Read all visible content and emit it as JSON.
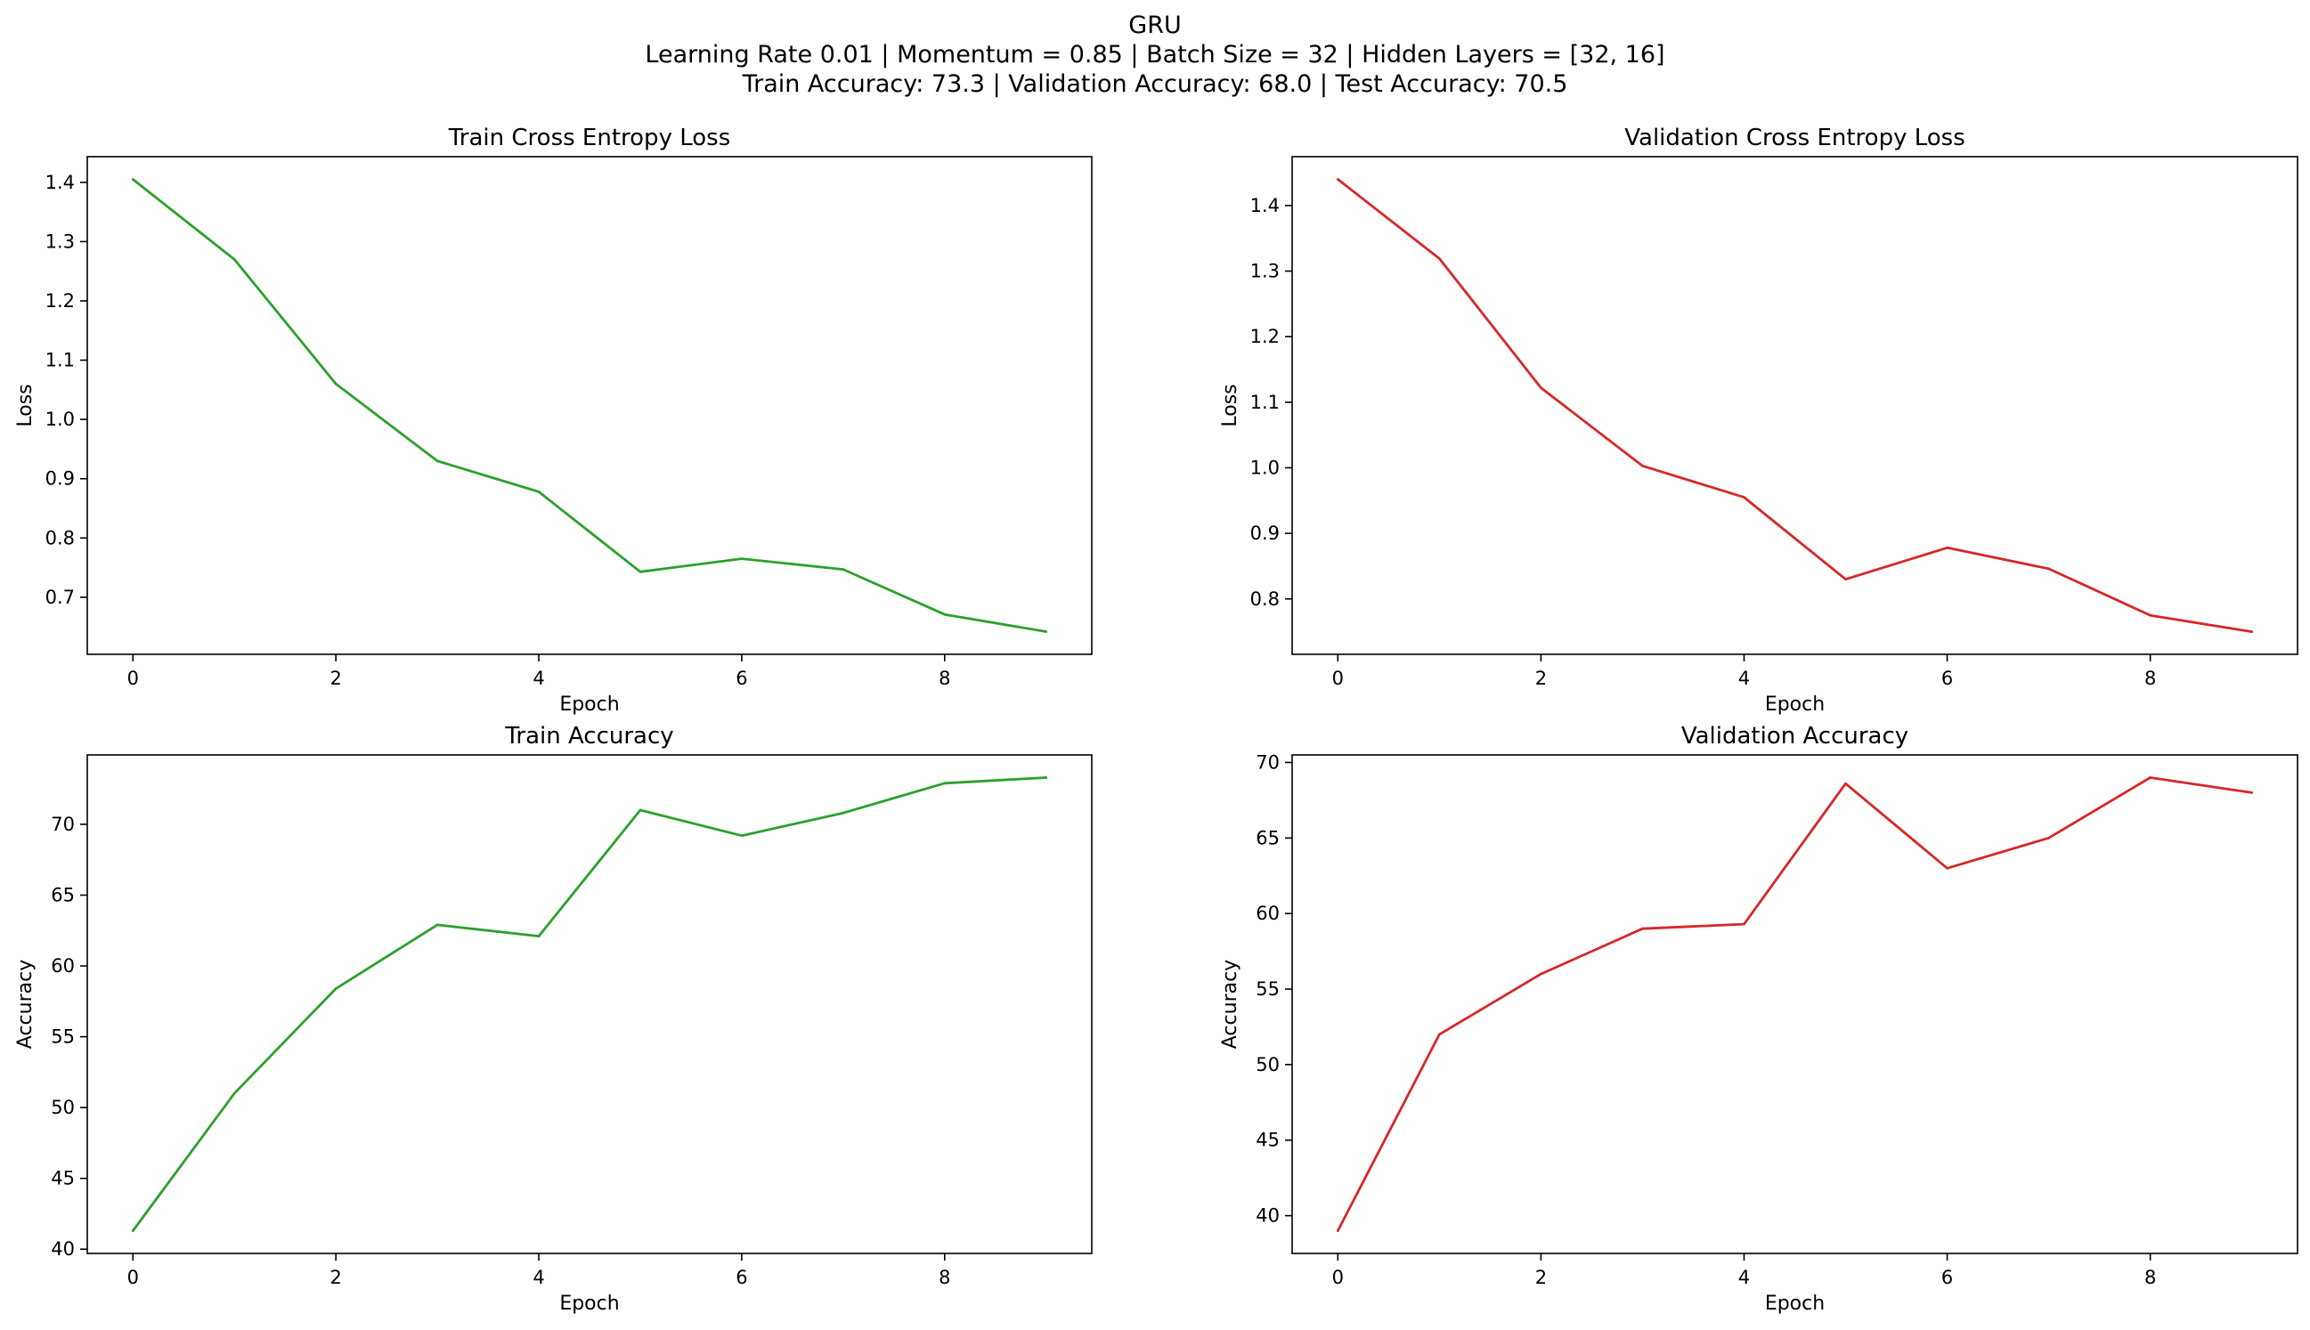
{
  "figure": {
    "title_lines": [
      "GRU",
      "Learning Rate 0.01 | Momentum = 0.85 | Batch Size  = 32 | Hidden Layers = [32, 16]",
      "Train Accuracy: 73.3 | Validation Accuracy: 68.0 | Test Accuracy: 70.5"
    ]
  },
  "chart_data": [
    {
      "type": "line",
      "title": "Train Cross Entropy Loss",
      "xlabel": "Epoch",
      "ylabel": "Loss",
      "color": "#2ca02c",
      "x": [
        0,
        1,
        2,
        3,
        4,
        5,
        6,
        7,
        8,
        9
      ],
      "values": [
        1.405,
        1.27,
        1.06,
        0.93,
        0.878,
        0.743,
        0.765,
        0.747,
        0.671,
        0.642
      ],
      "xlim": [
        -0.45,
        9.45
      ],
      "ylim": [
        0.6037,
        1.4433
      ],
      "xticks": [
        0,
        2,
        4,
        6,
        8
      ],
      "yticks": [
        0.7,
        0.8,
        0.9,
        1.0,
        1.1,
        1.2,
        1.3,
        1.4
      ],
      "ytick_labels": [
        "0.7",
        "0.8",
        "0.9",
        "1.0",
        "1.1",
        "1.2",
        "1.3",
        "1.4"
      ],
      "grid": false
    },
    {
      "type": "line",
      "title": "Validation Cross Entropy Loss",
      "xlabel": "Epoch",
      "ylabel": "Loss",
      "color": "#d62728",
      "x": [
        0,
        1,
        2,
        3,
        4,
        5,
        6,
        7,
        8,
        9
      ],
      "values": [
        1.44,
        1.319,
        1.122,
        1.003,
        0.955,
        0.83,
        0.878,
        0.846,
        0.775,
        0.75
      ],
      "xlim": [
        -0.45,
        9.45
      ],
      "ylim": [
        0.7155,
        1.4745
      ],
      "xticks": [
        0,
        2,
        4,
        6,
        8
      ],
      "yticks": [
        0.8,
        0.9,
        1.0,
        1.1,
        1.2,
        1.3,
        1.4
      ],
      "ytick_labels": [
        "0.8",
        "0.9",
        "1.0",
        "1.1",
        "1.2",
        "1.3",
        "1.4"
      ],
      "grid": false
    },
    {
      "type": "line",
      "title": "Train Accuracy",
      "xlabel": "Epoch",
      "ylabel": "Accuracy",
      "color": "#2ca02c",
      "x": [
        0,
        1,
        2,
        3,
        4,
        5,
        6,
        7,
        8,
        9
      ],
      "values": [
        41.3,
        51.0,
        58.4,
        62.9,
        62.1,
        71.0,
        69.2,
        70.8,
        72.9,
        73.3
      ],
      "xlim": [
        -0.45,
        9.45
      ],
      "ylim": [
        39.7,
        74.9
      ],
      "xticks": [
        0,
        2,
        4,
        6,
        8
      ],
      "yticks": [
        40,
        45,
        50,
        55,
        60,
        65,
        70
      ],
      "ytick_labels": [
        "40",
        "45",
        "50",
        "55",
        "60",
        "65",
        "70"
      ],
      "grid": false
    },
    {
      "type": "line",
      "title": "Validation Accuracy",
      "xlabel": "Epoch",
      "ylabel": "Accuracy",
      "color": "#d62728",
      "x": [
        0,
        1,
        2,
        3,
        4,
        5,
        6,
        7,
        8,
        9
      ],
      "values": [
        39.0,
        52.0,
        56.0,
        59.0,
        59.3,
        68.6,
        63.0,
        65.0,
        69.0,
        68.0
      ],
      "xlim": [
        -0.45,
        9.45
      ],
      "ylim": [
        37.5,
        70.5
      ],
      "xticks": [
        0,
        2,
        4,
        6,
        8
      ],
      "yticks": [
        40,
        45,
        50,
        55,
        60,
        65,
        70
      ],
      "ytick_labels": [
        "40",
        "45",
        "50",
        "55",
        "60",
        "65",
        "70"
      ],
      "grid": false
    }
  ]
}
